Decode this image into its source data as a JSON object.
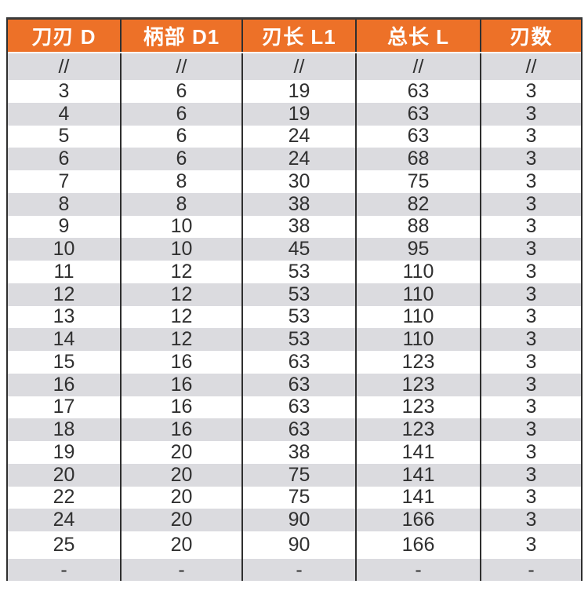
{
  "colors": {
    "header_bg": "#ED7128",
    "header_text": "#FFFFFF",
    "row_bg": "#FFFFFF",
    "row_alt_bg": "#DBDBDF",
    "text": "#303030",
    "border": "#2F2F2F"
  },
  "table": {
    "columns": [
      "刀刃 D",
      "柄部 D1",
      "刃长 L1",
      "总长 L",
      "刃数"
    ],
    "rows": [
      [
        "//",
        "//",
        "//",
        "//",
        "//"
      ],
      [
        "3",
        "6",
        "19",
        "63",
        "3"
      ],
      [
        "4",
        "6",
        "19",
        "63",
        "3"
      ],
      [
        "5",
        "6",
        "24",
        "63",
        "3"
      ],
      [
        "6",
        "6",
        "24",
        "68",
        "3"
      ],
      [
        "7",
        "8",
        "30",
        "75",
        "3"
      ],
      [
        "8",
        "8",
        "38",
        "82",
        "3"
      ],
      [
        "9",
        "10",
        "38",
        "88",
        "3"
      ],
      [
        "10",
        "10",
        "45",
        "95",
        "3"
      ],
      [
        "11",
        "12",
        "53",
        "110",
        "3"
      ],
      [
        "12",
        "12",
        "53",
        "110",
        "3"
      ],
      [
        "13",
        "12",
        "53",
        "110",
        "3"
      ],
      [
        "14",
        "12",
        "53",
        "110",
        "3"
      ],
      [
        "15",
        "16",
        "63",
        "123",
        "3"
      ],
      [
        "16",
        "16",
        "63",
        "123",
        "3"
      ],
      [
        "17",
        "16",
        "63",
        "123",
        "3"
      ],
      [
        "18",
        "16",
        "63",
        "123",
        "3"
      ],
      [
        "19",
        "20",
        "38",
        "141",
        "3"
      ],
      [
        "20",
        "20",
        "75",
        "141",
        "3"
      ],
      [
        "22",
        "20",
        "75",
        "141",
        "3"
      ],
      [
        "24",
        "20",
        "90",
        "166",
        "3"
      ],
      [
        "25",
        "20",
        "90",
        "166",
        "3"
      ],
      [
        "-",
        "-",
        "-",
        "-",
        "-"
      ]
    ]
  },
  "chart_data": {
    "type": "table",
    "columns": [
      "刀刃 D",
      "柄部 D1",
      "刃长 L1",
      "总长 L",
      "刃数"
    ],
    "rows": [
      [
        "//",
        "//",
        "//",
        "//",
        "//"
      ],
      [
        "3",
        "6",
        "19",
        "63",
        "3"
      ],
      [
        "4",
        "6",
        "19",
        "63",
        "3"
      ],
      [
        "5",
        "6",
        "24",
        "63",
        "3"
      ],
      [
        "6",
        "6",
        "24",
        "68",
        "3"
      ],
      [
        "7",
        "8",
        "30",
        "75",
        "3"
      ],
      [
        "8",
        "8",
        "38",
        "82",
        "3"
      ],
      [
        "9",
        "10",
        "38",
        "88",
        "3"
      ],
      [
        "10",
        "10",
        "45",
        "95",
        "3"
      ],
      [
        "11",
        "12",
        "53",
        "110",
        "3"
      ],
      [
        "12",
        "12",
        "53",
        "110",
        "3"
      ],
      [
        "13",
        "12",
        "53",
        "110",
        "3"
      ],
      [
        "14",
        "12",
        "53",
        "110",
        "3"
      ],
      [
        "15",
        "16",
        "63",
        "123",
        "3"
      ],
      [
        "16",
        "16",
        "63",
        "123",
        "3"
      ],
      [
        "17",
        "16",
        "63",
        "123",
        "3"
      ],
      [
        "18",
        "16",
        "63",
        "123",
        "3"
      ],
      [
        "19",
        "20",
        "38",
        "141",
        "3"
      ],
      [
        "20",
        "20",
        "75",
        "141",
        "3"
      ],
      [
        "22",
        "20",
        "75",
        "141",
        "3"
      ],
      [
        "24",
        "20",
        "90",
        "166",
        "3"
      ],
      [
        "25",
        "20",
        "90",
        "166",
        "3"
      ],
      [
        "-",
        "-",
        "-",
        "-",
        "-"
      ]
    ]
  }
}
